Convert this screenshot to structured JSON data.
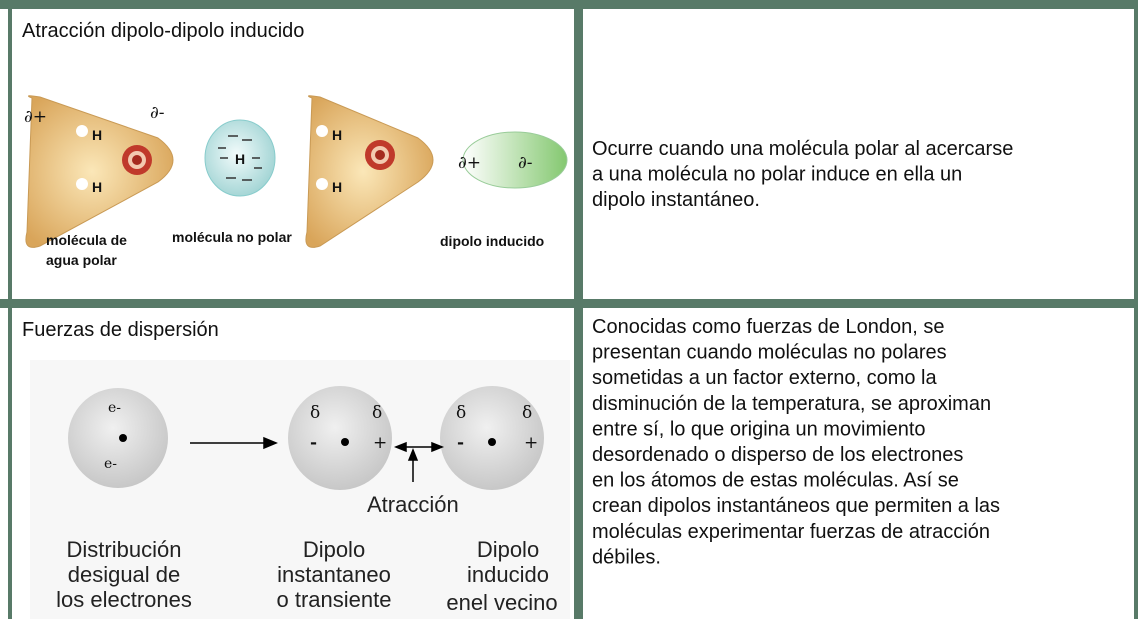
{
  "table": {
    "rows": [
      {
        "title": "Atracción dipolo-dipolo inducido",
        "figure": {
          "labels": [
            "∂+",
            "∂-",
            "H",
            "H",
            "H",
            "H",
            "H",
            "∂+",
            "∂-",
            "molécula de",
            "agua polar",
            "molécula no polar",
            "dipolo inducido"
          ]
        },
        "description": [
          "Ocurre cuando una molécula polar al acercarse",
          "a una molécula no polar induce en ella un",
          "dipolo instantáneo."
        ]
      },
      {
        "title": "Fuerzas de dispersión",
        "figure": {
          "labels": [
            "e-",
            "e-",
            "δ",
            "δ",
            "-",
            "+",
            "δ",
            "δ",
            "-",
            "+",
            "Atracción",
            "Distribución",
            "desigual de",
            "los electrones",
            "Dipolo",
            "instantaneo",
            "o transiente",
            "Dipolo",
            "inducido",
            "enel vecino"
          ]
        },
        "description": [
          "Conocidas como fuerzas de London, se",
          "presentan cuando moléculas no polares",
          "sometidas a un factor externo, como la",
          "disminución de la temperatura, se aproximan",
          "entre sí, lo que origina un movimiento",
          "desordenado o disperso de los electrones",
          "en los átomos de estas moléculas. Así se",
          "crean dipolos instantáneos que permiten a las",
          "moléculas experimentar fuerzas de atracción",
          "débiles."
        ]
      }
    ]
  }
}
